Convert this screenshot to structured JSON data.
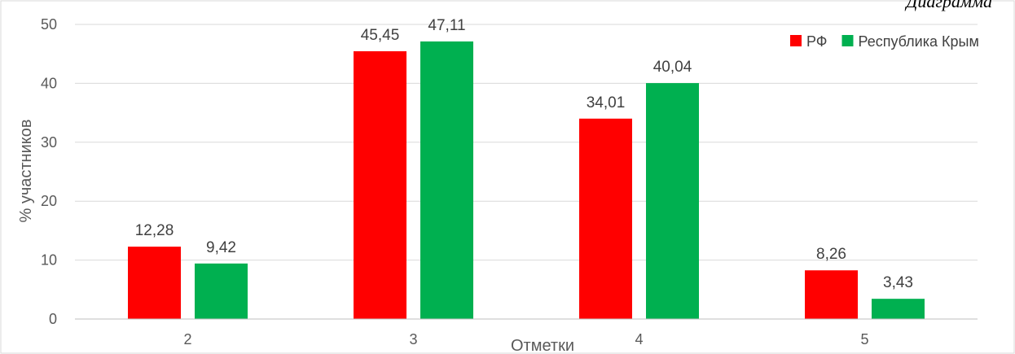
{
  "header_cutoff_text": "Диаграмма",
  "chart_data": {
    "type": "bar",
    "categories": [
      "2",
      "3",
      "4",
      "5"
    ],
    "series": [
      {
        "name": "РФ",
        "color": "#ff0000",
        "values": [
          12.28,
          45.45,
          34.01,
          8.26
        ],
        "labels": [
          "12,28",
          "45,45",
          "34,01",
          "8,26"
        ]
      },
      {
        "name": "Республика Крым",
        "color": "#00b050",
        "values": [
          9.42,
          47.11,
          40.04,
          3.43
        ],
        "labels": [
          "9,42",
          "47,11",
          "40,04",
          "3,43"
        ]
      }
    ],
    "title": "",
    "xlabel": "Отметки",
    "ylabel": "% участников",
    "ylim": [
      0,
      50
    ],
    "yticks": [
      "0",
      "10",
      "20",
      "30",
      "40",
      "50"
    ],
    "grid": true,
    "gridline_color": "#d9d9d9",
    "legend_position": "top-right"
  }
}
